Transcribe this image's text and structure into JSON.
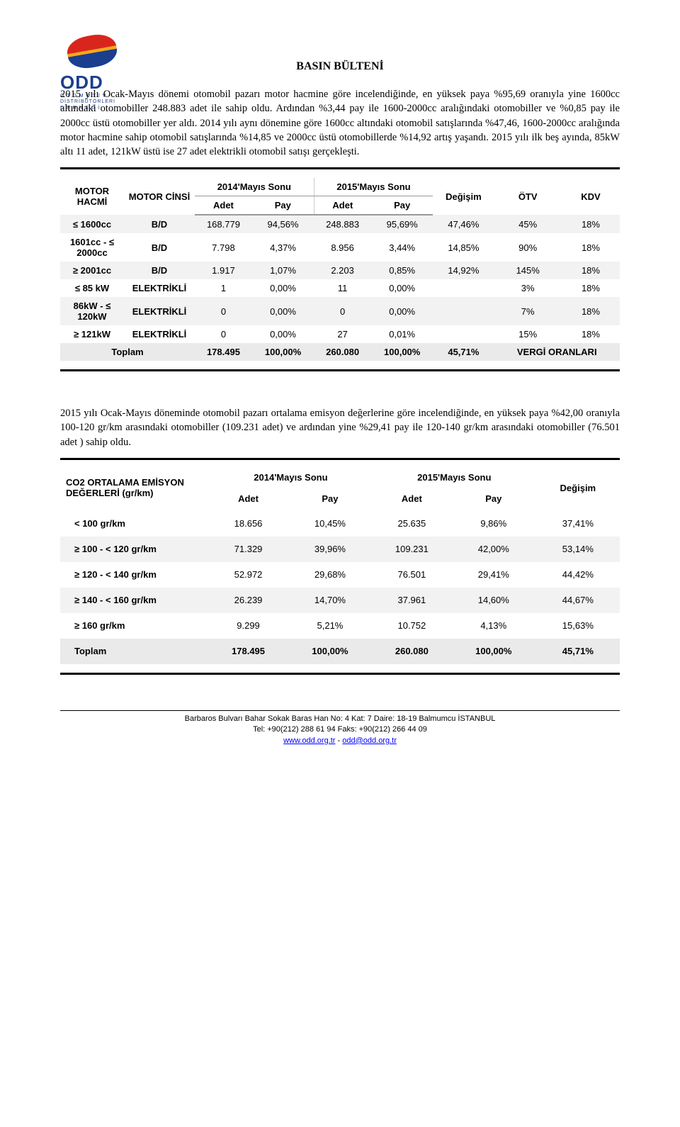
{
  "logo": {
    "abbr": "ODD",
    "sub1": "O T O M O T İ V",
    "sub2": "DİSTRİBÜTÖRLERİ",
    "sub3": "D E R N E Ğ İ"
  },
  "title": "BASIN BÜLTENİ",
  "para1": "2015 yılı Ocak-Mayıs dönemi otomobil pazarı motor hacmine göre incelendiğinde, en yüksek paya %95,69 oranıyla yine 1600cc altındaki otomobiller 248.883 adet ile sahip oldu. Ardından %3,44 pay ile 1600-2000cc aralığındaki otomobiller ve %0,85 pay ile 2000cc üstü otomobiller yer aldı. 2014 yılı aynı dönemine göre 1600cc altındaki otomobil satışlarında %47,46, 1600-2000cc aralığında motor hacmine sahip otomobil satışlarında %14,85 ve 2000cc üstü otomobillerde %14,92 artış yaşandı. 2015 yılı ilk beş ayında, 85kW altı 11 adet, 121kW üstü ise 27 adet elektrikli otomobil satışı gerçekleşti.",
  "table1": {
    "headers": {
      "c1": "MOTOR HACMİ",
      "c2": "MOTOR CİNSİ",
      "g1": "2014'Mayıs Sonu",
      "g2": "2015'Mayıs Sonu",
      "sub_adet": "Adet",
      "sub_pay": "Pay",
      "c7": "Değişim",
      "c8": "ÖTV",
      "c9": "KDV"
    },
    "rows": [
      {
        "c1": "≤ 1600cc",
        "c2": "B/D",
        "a1": "168.779",
        "p1": "94,56%",
        "a2": "248.883",
        "p2": "95,69%",
        "chg": "47,46%",
        "otv": "45%",
        "kdv": "18%"
      },
      {
        "c1": "1601cc - ≤ 2000cc",
        "c2": "B/D",
        "a1": "7.798",
        "p1": "4,37%",
        "a2": "8.956",
        "p2": "3,44%",
        "chg": "14,85%",
        "otv": "90%",
        "kdv": "18%"
      },
      {
        "c1": "≥ 2001cc",
        "c2": "B/D",
        "a1": "1.917",
        "p1": "1,07%",
        "a2": "2.203",
        "p2": "0,85%",
        "chg": "14,92%",
        "otv": "145%",
        "kdv": "18%"
      },
      {
        "c1": "≤ 85 kW",
        "c2": "ELEKTRİKLİ",
        "a1": "1",
        "p1": "0,00%",
        "a2": "11",
        "p2": "0,00%",
        "chg": "",
        "otv": "3%",
        "kdv": "18%"
      },
      {
        "c1": "86kW - ≤ 120kW",
        "c2": "ELEKTRİKLİ",
        "a1": "0",
        "p1": "0,00%",
        "a2": "0",
        "p2": "0,00%",
        "chg": "",
        "otv": "7%",
        "kdv": "18%"
      },
      {
        "c1": "≥ 121kW",
        "c2": "ELEKTRİKLİ",
        "a1": "0",
        "p1": "0,00%",
        "a2": "27",
        "p2": "0,01%",
        "chg": "",
        "otv": "15%",
        "kdv": "18%"
      }
    ],
    "total": {
      "lbl": "Toplam",
      "a1": "178.495",
      "p1": "100,00%",
      "a2": "260.080",
      "p2": "100,00%",
      "chg": "45,71%",
      "right": "VERGİ ORANLARI"
    }
  },
  "para2": "2015 yılı Ocak-Mayıs döneminde otomobil pazarı ortalama emisyon değerlerine göre incelendiğinde, en yüksek paya %42,00 oranıyla 100-120 gr/km arasındaki otomobiller (109.231 adet) ve ardından yine %29,41 pay ile 120-140 gr/km arasındaki otomobiller (76.501 adet ) sahip oldu.",
  "table2": {
    "headers": {
      "c1": "CO2 ORTALAMA EMİSYON DEĞERLERİ (gr/km)",
      "g1": "2014'Mayıs Sonu",
      "g2": "2015'Mayıs Sonu",
      "sub_adet": "Adet",
      "sub_pay": "Pay",
      "c6": "Değişim"
    },
    "rows": [
      {
        "c1": "< 100 gr/km",
        "a1": "18.656",
        "p1": "10,45%",
        "a2": "25.635",
        "p2": "9,86%",
        "chg": "37,41%"
      },
      {
        "c1": "≥ 100 - < 120 gr/km",
        "a1": "71.329",
        "p1": "39,96%",
        "a2": "109.231",
        "p2": "42,00%",
        "chg": "53,14%"
      },
      {
        "c1": "≥ 120 - < 140 gr/km",
        "a1": "52.972",
        "p1": "29,68%",
        "a2": "76.501",
        "p2": "29,41%",
        "chg": "44,42%"
      },
      {
        "c1": "≥ 140 - < 160 gr/km",
        "a1": "26.239",
        "p1": "14,70%",
        "a2": "37.961",
        "p2": "14,60%",
        "chg": "44,67%"
      },
      {
        "c1": "≥  160 gr/km",
        "a1": "9.299",
        "p1": "5,21%",
        "a2": "10.752",
        "p2": "4,13%",
        "chg": "15,63%"
      }
    ],
    "total": {
      "lbl": "Toplam",
      "a1": "178.495",
      "p1": "100,00%",
      "a2": "260.080",
      "p2": "100,00%",
      "chg": "45,71%"
    }
  },
  "footer": {
    "addr": "Barbaros Bulvarı Bahar Sokak Baras Han No: 4 Kat: 7 Daire: 18-19  Balmumcu İSTANBUL",
    "tel": "Tel: +90(212) 288 61 94  Faks: +90(212) 266 44 09",
    "url": "www.odd.org.tr",
    "sep": "   -   ",
    "mail": "odd@odd.org.tr"
  }
}
